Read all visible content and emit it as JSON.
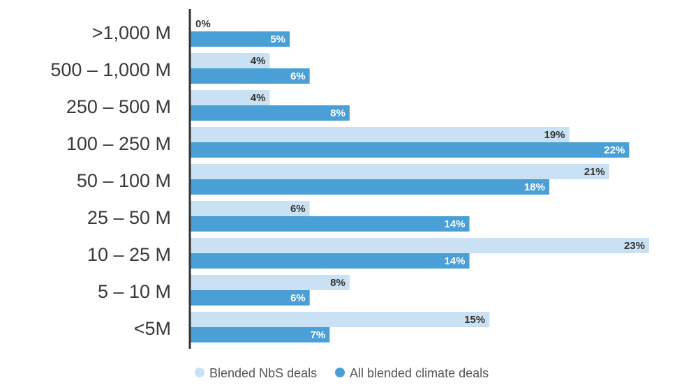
{
  "chart_data": {
    "type": "bar",
    "orientation": "horizontal",
    "categories": [
      ">1,000 M",
      "500 – 1,000 M",
      "250 – 500 M",
      "100 – 250 M",
      "50 – 100 M",
      "25 – 50 M",
      "10 – 25 M",
      "5 – 10 M",
      "<5M"
    ],
    "series": [
      {
        "name": "Blended NbS deals",
        "values": [
          0,
          4,
          4,
          19,
          21,
          6,
          23,
          8,
          15
        ],
        "labels": [
          "0%",
          "4%",
          "4%",
          "19%",
          "21%",
          "6%",
          "23%",
          "8%",
          "15%"
        ]
      },
      {
        "name": "All blended climate deals",
        "values": [
          5,
          6,
          8,
          22,
          18,
          14,
          14,
          6,
          7
        ],
        "labels": [
          "5%",
          "6%",
          "8%",
          "22%",
          "18%",
          "14%",
          "14%",
          "6%",
          "7%"
        ]
      }
    ],
    "xlim": [
      0,
      23
    ],
    "grid": false,
    "legend_position": "bottom",
    "colors": {
      "Blended NbS deals": "#c9e1f3",
      "All blended climate deals": "#4a9fd6",
      "axis": "#333333",
      "label_dark": "#333333",
      "label_light": "#ffffff"
    }
  }
}
